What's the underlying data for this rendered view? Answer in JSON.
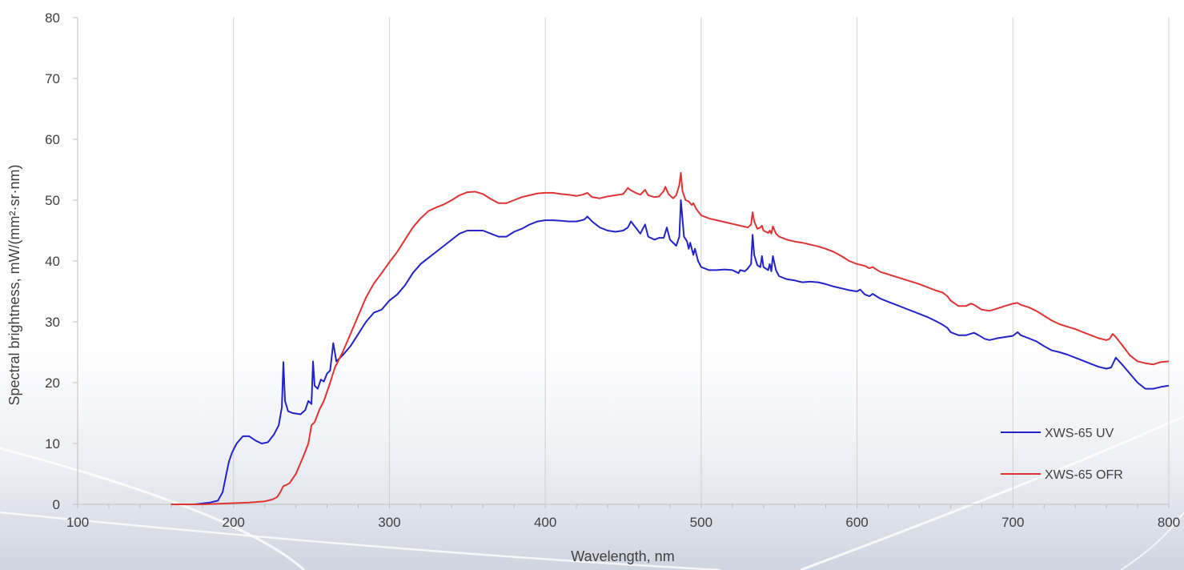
{
  "chart_data": {
    "type": "line",
    "title": "",
    "xlabel": "Wavelength, nm",
    "ylabel": "Spectral brightness, mW/(mm²·sr·nm)",
    "xlim": [
      100,
      800
    ],
    "ylim": [
      0,
      80
    ],
    "x_ticks": [
      "100",
      "200",
      "300",
      "400",
      "500",
      "600",
      "700",
      "800"
    ],
    "y_ticks": [
      "0",
      "10",
      "20",
      "30",
      "40",
      "50",
      "60",
      "70",
      "80"
    ],
    "grid": "vertical",
    "legend_position": "bottom-right",
    "series": [
      {
        "name": "XWS-65 UV",
        "color": "#2323c8",
        "points": [
          [
            160,
            0
          ],
          [
            175,
            0
          ],
          [
            185,
            0.3
          ],
          [
            190,
            0.6
          ],
          [
            193,
            2
          ],
          [
            195,
            4.5
          ],
          [
            197,
            7
          ],
          [
            199,
            8.5
          ],
          [
            202,
            10
          ],
          [
            206,
            11.2
          ],
          [
            210,
            11.2
          ],
          [
            214,
            10.5
          ],
          [
            218,
            10
          ],
          [
            222,
            10.2
          ],
          [
            226,
            11.5
          ],
          [
            229,
            13
          ],
          [
            231,
            16
          ],
          [
            232,
            23.4
          ],
          [
            233,
            17
          ],
          [
            235,
            15.3
          ],
          [
            238,
            15
          ],
          [
            243,
            14.8
          ],
          [
            246,
            15.5
          ],
          [
            248,
            17
          ],
          [
            250,
            16.5
          ],
          [
            251,
            23.5
          ],
          [
            252,
            19.5
          ],
          [
            254,
            19
          ],
          [
            256,
            20.5
          ],
          [
            258,
            20.2
          ],
          [
            260,
            21.5
          ],
          [
            262,
            22
          ],
          [
            264,
            26.5
          ],
          [
            266,
            23.5
          ],
          [
            270,
            24.5
          ],
          [
            275,
            26
          ],
          [
            280,
            28
          ],
          [
            285,
            30
          ],
          [
            290,
            31.5
          ],
          [
            295,
            32
          ],
          [
            300,
            33.5
          ],
          [
            305,
            34.5
          ],
          [
            310,
            36
          ],
          [
            315,
            38
          ],
          [
            320,
            39.5
          ],
          [
            325,
            40.5
          ],
          [
            330,
            41.5
          ],
          [
            335,
            42.5
          ],
          [
            340,
            43.5
          ],
          [
            345,
            44.5
          ],
          [
            350,
            45
          ],
          [
            355,
            45
          ],
          [
            360,
            45
          ],
          [
            365,
            44.5
          ],
          [
            370,
            44
          ],
          [
            375,
            44
          ],
          [
            380,
            44.8
          ],
          [
            385,
            45.3
          ],
          [
            390,
            46
          ],
          [
            395,
            46.5
          ],
          [
            400,
            46.7
          ],
          [
            405,
            46.7
          ],
          [
            410,
            46.6
          ],
          [
            415,
            46.5
          ],
          [
            420,
            46.5
          ],
          [
            425,
            46.8
          ],
          [
            427,
            47.3
          ],
          [
            430,
            46.5
          ],
          [
            435,
            45.5
          ],
          [
            440,
            45
          ],
          [
            445,
            44.8
          ],
          [
            450,
            45
          ],
          [
            453,
            45.5
          ],
          [
            455,
            46.5
          ],
          [
            458,
            45.5
          ],
          [
            461,
            44.5
          ],
          [
            464,
            46
          ],
          [
            466,
            44
          ],
          [
            470,
            43.5
          ],
          [
            473,
            43.8
          ],
          [
            476,
            43.8
          ],
          [
            478,
            45.5
          ],
          [
            480,
            43.5
          ],
          [
            484,
            42.5
          ],
          [
            486,
            44
          ],
          [
            487,
            50
          ],
          [
            489,
            44
          ],
          [
            491,
            43.2
          ],
          [
            492,
            42
          ],
          [
            493,
            43
          ],
          [
            495,
            41
          ],
          [
            496,
            42
          ],
          [
            498,
            40
          ],
          [
            500,
            39
          ],
          [
            505,
            38.5
          ],
          [
            510,
            38.5
          ],
          [
            515,
            38.6
          ],
          [
            520,
            38.5
          ],
          [
            524,
            38
          ],
          [
            525,
            38.5
          ],
          [
            528,
            38.3
          ],
          [
            530,
            38.8
          ],
          [
            532,
            39.5
          ],
          [
            533,
            44.3
          ],
          [
            534,
            41
          ],
          [
            536,
            39.3
          ],
          [
            538,
            39
          ],
          [
            539,
            40.8
          ],
          [
            540,
            39
          ],
          [
            543,
            38.5
          ],
          [
            544,
            39.5
          ],
          [
            545,
            38.3
          ],
          [
            546,
            40.8
          ],
          [
            548,
            38.5
          ],
          [
            550,
            37.5
          ],
          [
            555,
            37
          ],
          [
            560,
            36.8
          ],
          [
            565,
            36.5
          ],
          [
            570,
            36.6
          ],
          [
            575,
            36.5
          ],
          [
            580,
            36.2
          ],
          [
            585,
            35.8
          ],
          [
            590,
            35.5
          ],
          [
            595,
            35.2
          ],
          [
            600,
            35
          ],
          [
            602,
            35.3
          ],
          [
            605,
            34.5
          ],
          [
            608,
            34.2
          ],
          [
            610,
            34.6
          ],
          [
            615,
            33.8
          ],
          [
            620,
            33.3
          ],
          [
            625,
            32.8
          ],
          [
            630,
            32.3
          ],
          [
            635,
            31.8
          ],
          [
            640,
            31.3
          ],
          [
            645,
            30.8
          ],
          [
            650,
            30.2
          ],
          [
            655,
            29.5
          ],
          [
            658,
            29
          ],
          [
            660,
            28.3
          ],
          [
            665,
            27.8
          ],
          [
            670,
            27.8
          ],
          [
            675,
            28.2
          ],
          [
            678,
            27.8
          ],
          [
            682,
            27.2
          ],
          [
            685,
            27
          ],
          [
            690,
            27.3
          ],
          [
            695,
            27.5
          ],
          [
            700,
            27.7
          ],
          [
            703,
            28.3
          ],
          [
            705,
            27.8
          ],
          [
            710,
            27.3
          ],
          [
            715,
            26.8
          ],
          [
            720,
            26
          ],
          [
            725,
            25.3
          ],
          [
            730,
            25
          ],
          [
            735,
            24.6
          ],
          [
            740,
            24.1
          ],
          [
            745,
            23.6
          ],
          [
            750,
            23.1
          ],
          [
            755,
            22.6
          ],
          [
            760,
            22.3
          ],
          [
            763,
            22.5
          ],
          [
            766,
            24.1
          ],
          [
            770,
            23
          ],
          [
            775,
            21.5
          ],
          [
            780,
            20
          ],
          [
            785,
            19
          ],
          [
            790,
            19
          ],
          [
            795,
            19.3
          ],
          [
            800,
            19.5
          ]
        ]
      },
      {
        "name": "XWS-65 OFR",
        "color": "#e03333",
        "points": [
          [
            160,
            0
          ],
          [
            180,
            0
          ],
          [
            200,
            0.2
          ],
          [
            210,
            0.3
          ],
          [
            220,
            0.5
          ],
          [
            225,
            0.8
          ],
          [
            228,
            1.2
          ],
          [
            230,
            2
          ],
          [
            232,
            3
          ],
          [
            234,
            3.2
          ],
          [
            236,
            3.5
          ],
          [
            240,
            5
          ],
          [
            245,
            8
          ],
          [
            248,
            10
          ],
          [
            250,
            13
          ],
          [
            252,
            13.5
          ],
          [
            255,
            15.5
          ],
          [
            258,
            17
          ],
          [
            262,
            20
          ],
          [
            265,
            22.5
          ],
          [
            270,
            25
          ],
          [
            275,
            28
          ],
          [
            280,
            31
          ],
          [
            285,
            34
          ],
          [
            290,
            36.3
          ],
          [
            295,
            38
          ],
          [
            300,
            39.8
          ],
          [
            305,
            41.5
          ],
          [
            310,
            43.5
          ],
          [
            315,
            45.5
          ],
          [
            320,
            47
          ],
          [
            325,
            48.2
          ],
          [
            330,
            48.8
          ],
          [
            335,
            49.3
          ],
          [
            340,
            50
          ],
          [
            345,
            50.8
          ],
          [
            350,
            51.3
          ],
          [
            355,
            51.4
          ],
          [
            360,
            51
          ],
          [
            365,
            50.2
          ],
          [
            370,
            49.5
          ],
          [
            375,
            49.5
          ],
          [
            380,
            50
          ],
          [
            385,
            50.5
          ],
          [
            390,
            50.8
          ],
          [
            395,
            51.1
          ],
          [
            400,
            51.2
          ],
          [
            405,
            51.2
          ],
          [
            410,
            51
          ],
          [
            415,
            50.9
          ],
          [
            420,
            50.7
          ],
          [
            424,
            50.9
          ],
          [
            427,
            51.2
          ],
          [
            430,
            50.5
          ],
          [
            435,
            50.3
          ],
          [
            440,
            50.6
          ],
          [
            445,
            50.8
          ],
          [
            450,
            51
          ],
          [
            453,
            52
          ],
          [
            455,
            51.6
          ],
          [
            458,
            51.2
          ],
          [
            461,
            50.9
          ],
          [
            464,
            51.7
          ],
          [
            466,
            50.8
          ],
          [
            470,
            50.5
          ],
          [
            473,
            50.6
          ],
          [
            476,
            51.5
          ],
          [
            477,
            52.2
          ],
          [
            479,
            51
          ],
          [
            482,
            50.3
          ],
          [
            484,
            50.8
          ],
          [
            486,
            52.5
          ],
          [
            487,
            54.5
          ],
          [
            488,
            51.5
          ],
          [
            490,
            50
          ],
          [
            492,
            49.8
          ],
          [
            494,
            49.2
          ],
          [
            495,
            49.5
          ],
          [
            497,
            48.5
          ],
          [
            500,
            47.5
          ],
          [
            505,
            47
          ],
          [
            510,
            46.7
          ],
          [
            515,
            46.4
          ],
          [
            520,
            46.1
          ],
          [
            525,
            45.8
          ],
          [
            530,
            45.5
          ],
          [
            532,
            46
          ],
          [
            533,
            48
          ],
          [
            534,
            46.5
          ],
          [
            536,
            45.3
          ],
          [
            538,
            45.5
          ],
          [
            539,
            45.8
          ],
          [
            540,
            45
          ],
          [
            543,
            44.6
          ],
          [
            544,
            45
          ],
          [
            545,
            44.5
          ],
          [
            546,
            45.7
          ],
          [
            548,
            44.5
          ],
          [
            550,
            44
          ],
          [
            555,
            43.5
          ],
          [
            560,
            43.2
          ],
          [
            565,
            43
          ],
          [
            570,
            42.7
          ],
          [
            575,
            42.4
          ],
          [
            580,
            42
          ],
          [
            585,
            41.5
          ],
          [
            590,
            40.8
          ],
          [
            595,
            40
          ],
          [
            600,
            39.5
          ],
          [
            605,
            39.2
          ],
          [
            608,
            38.8
          ],
          [
            610,
            39
          ],
          [
            615,
            38.2
          ],
          [
            620,
            37.8
          ],
          [
            625,
            37.4
          ],
          [
            630,
            37
          ],
          [
            635,
            36.6
          ],
          [
            640,
            36.2
          ],
          [
            645,
            35.7
          ],
          [
            650,
            35.2
          ],
          [
            655,
            34.8
          ],
          [
            658,
            34.2
          ],
          [
            660,
            33.5
          ],
          [
            665,
            32.6
          ],
          [
            670,
            32.6
          ],
          [
            673,
            33
          ],
          [
            675,
            32.8
          ],
          [
            680,
            32
          ],
          [
            685,
            31.8
          ],
          [
            690,
            32.2
          ],
          [
            695,
            32.6
          ],
          [
            700,
            33
          ],
          [
            703,
            33.1
          ],
          [
            705,
            32.8
          ],
          [
            710,
            32.4
          ],
          [
            715,
            31.8
          ],
          [
            720,
            31
          ],
          [
            725,
            30.2
          ],
          [
            730,
            29.6
          ],
          [
            735,
            29.2
          ],
          [
            740,
            28.8
          ],
          [
            745,
            28.3
          ],
          [
            750,
            27.8
          ],
          [
            755,
            27.3
          ],
          [
            760,
            27
          ],
          [
            762,
            27.2
          ],
          [
            764,
            28
          ],
          [
            766,
            27.5
          ],
          [
            770,
            26.2
          ],
          [
            775,
            24.5
          ],
          [
            780,
            23.5
          ],
          [
            785,
            23.2
          ],
          [
            790,
            23
          ],
          [
            795,
            23.4
          ],
          [
            800,
            23.5
          ]
        ]
      }
    ]
  }
}
